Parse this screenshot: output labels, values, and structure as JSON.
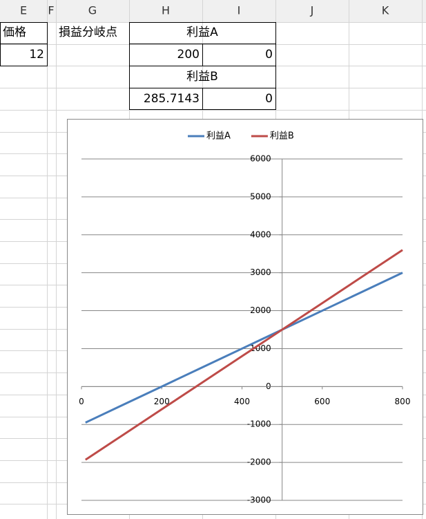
{
  "sheet": {
    "columns": [
      "E",
      "F",
      "G",
      "H",
      "I",
      "J",
      "K"
    ],
    "table": {
      "rows": [
        [
          "価格",
          "損益分岐点",
          "利益A"
        ],
        [
          12,
          200,
          0
        ],
        [
          "利益B"
        ],
        [
          285.7143,
          0
        ]
      ]
    }
  },
  "chart_data": {
    "type": "line",
    "x": [
      10,
      100,
      200,
      300,
      400,
      500,
      600,
      700,
      800
    ],
    "series": [
      {
        "name": "利益A",
        "color": "#4a7ebb",
        "values": [
          -950,
          -500,
          0,
          500,
          1000,
          1500,
          2000,
          2500,
          3000
        ]
      },
      {
        "name": "利益B",
        "color": "#be4b48",
        "values": [
          -1930,
          -1300,
          -600,
          100,
          800,
          1500,
          2200,
          2900,
          3600
        ]
      }
    ],
    "xlim": [
      0,
      800
    ],
    "xticks": [
      0,
      200,
      400,
      600,
      800
    ],
    "ylim": [
      -3000,
      6000
    ],
    "yticks": [
      -3000,
      -2000,
      -1000,
      0,
      1000,
      2000,
      3000,
      4000,
      5000,
      6000
    ],
    "yaxis_at": 500,
    "grid": true,
    "legend": "top"
  }
}
